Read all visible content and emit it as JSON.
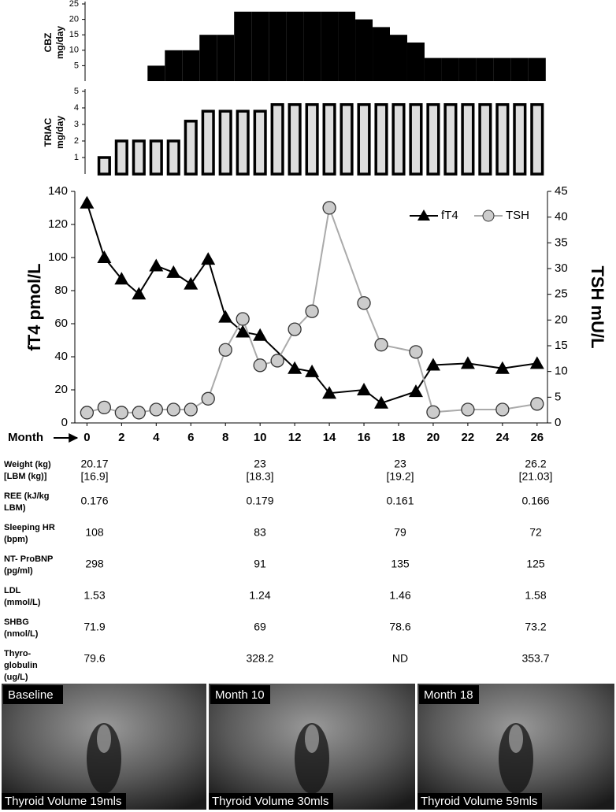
{
  "chart_data": [
    {
      "type": "bar",
      "ylabel": [
        "CBZ",
        "mg/day"
      ],
      "color": "#000000",
      "x": [
        0,
        1,
        2,
        3,
        4,
        5,
        6,
        7,
        8,
        9,
        10,
        11,
        12,
        13,
        14,
        15,
        16,
        17,
        18,
        19,
        20,
        21,
        22,
        23,
        24,
        25,
        26
      ],
      "values": [
        0,
        0,
        0,
        0,
        5,
        10,
        10,
        15,
        15,
        22.5,
        22.5,
        22.5,
        22.5,
        22.5,
        22.5,
        22.5,
        20,
        17.5,
        15,
        12.5,
        7.5,
        7.5,
        7.5,
        7.5,
        7.5,
        7.5,
        7.5
      ],
      "xlim": [
        -0.7,
        26.6
      ],
      "ylim": [
        0,
        25
      ],
      "yticks": [
        5,
        10,
        15,
        20,
        25
      ]
    },
    {
      "type": "bar",
      "ylabel": [
        "TRIAC",
        "mg/day"
      ],
      "color": "#dddddd",
      "edgecolor": "#000000",
      "x": [
        1,
        2,
        3,
        4,
        5,
        6,
        7,
        8,
        9,
        10,
        11,
        12,
        13,
        14,
        15,
        16,
        17,
        18,
        19,
        20,
        21,
        22,
        23,
        24,
        25,
        26
      ],
      "values": [
        1,
        2,
        2,
        2,
        2,
        3.2,
        3.8,
        3.8,
        3.8,
        3.8,
        4.2,
        4.2,
        4.2,
        4.2,
        4.2,
        4.2,
        4.2,
        4.2,
        4.2,
        4.2,
        4.2,
        4.2,
        4.2,
        4.2,
        4.2,
        4.2
      ],
      "xlim": [
        -0.7,
        26.6
      ],
      "ylim": [
        0,
        5
      ],
      "yticks": [
        1,
        2,
        3,
        4,
        5
      ]
    },
    {
      "type": "line",
      "xlabel": "Month",
      "ylabel": "fT4 pmol/L",
      "y2label": "TSH mU/L",
      "xlim": [
        -0.7,
        26.6
      ],
      "xticks": [
        0,
        2,
        4,
        6,
        8,
        10,
        12,
        14,
        16,
        18,
        20,
        22,
        24,
        26
      ],
      "ylim": [
        0,
        140
      ],
      "yticks": [
        0,
        20,
        40,
        60,
        80,
        100,
        120,
        140
      ],
      "y2lim": [
        0,
        45
      ],
      "y2ticks": [
        0,
        5,
        10,
        15,
        20,
        25,
        30,
        35,
        40,
        45
      ],
      "legend": "upper right",
      "series": [
        {
          "name": "fT4",
          "color": "#000000",
          "marker": "triangle",
          "x": [
            0,
            1,
            2,
            3,
            4,
            5,
            6,
            7,
            8,
            9,
            10,
            12,
            13,
            14,
            16,
            17,
            19,
            20,
            22,
            24,
            26
          ],
          "values": [
            133,
            100,
            87,
            78,
            95,
            91,
            84,
            99,
            64,
            55,
            53,
            33,
            31,
            18,
            20,
            12,
            19,
            35,
            36,
            33,
            36
          ]
        },
        {
          "name": "TSH",
          "color": "#aaaaaa",
          "marker": "circle",
          "axis": "y2",
          "x": [
            0,
            1,
            2,
            3,
            4,
            5,
            6,
            7,
            8,
            9,
            10,
            11,
            12,
            13,
            14,
            16,
            17,
            19,
            20,
            22,
            24,
            26
          ],
          "values": [
            2,
            3,
            2,
            2,
            2.6,
            2.6,
            2.6,
            4.7,
            14.2,
            20.2,
            11.2,
            12.1,
            18.2,
            21.7,
            41.8,
            23.3,
            15.2,
            13.8,
            2.1,
            2.6,
            2.6,
            3.7
          ]
        }
      ]
    }
  ],
  "table": {
    "rows": [
      {
        "label": [
          "Weight (kg)",
          "[LBM (kg)]"
        ],
        "cells": [
          [
            "20.17",
            "[16.9]"
          ],
          [
            "23",
            "[18.3]"
          ],
          [
            "23",
            "[19.2]"
          ],
          [
            "26.2",
            "[21.03]"
          ]
        ]
      },
      {
        "label": [
          "REE (kJ/kg",
          "LBM)"
        ],
        "cells": [
          "0.176",
          "0.179",
          "0.161",
          "0.166"
        ]
      },
      {
        "label": [
          "Sleeping HR",
          "(bpm)"
        ],
        "cells": [
          "108",
          "83",
          "79",
          "72"
        ]
      },
      {
        "label": [
          "NT- ProBNP",
          "(pg/ml)"
        ],
        "cells": [
          "298",
          "91",
          "135",
          "125"
        ]
      },
      {
        "label": [
          "LDL",
          "(mmol/L)"
        ],
        "cells": [
          "1.53",
          "1.24",
          "1.46",
          "1.58"
        ]
      },
      {
        "label": [
          "SHBG",
          "(nmol/L)"
        ],
        "cells": [
          "71.9",
          "69",
          "78.6",
          "73.2"
        ]
      },
      {
        "label": [
          "Thyro-",
          "globulin",
          "(ug/L)"
        ],
        "cells": [
          "79.6",
          "328.2",
          "ND",
          "353.7"
        ]
      }
    ]
  },
  "images": [
    {
      "label": "Baseline",
      "caption": "Thyroid Volume 19mls"
    },
    {
      "label": "Month 10",
      "caption": "Thyroid Volume 30mls"
    },
    {
      "label": "Month 18",
      "caption": "Thyroid Volume 59mls"
    }
  ]
}
